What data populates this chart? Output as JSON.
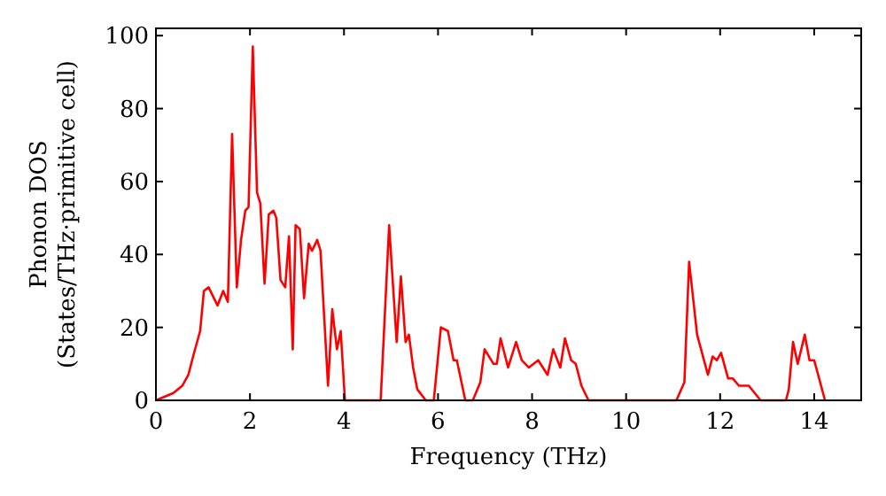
{
  "chart_data": {
    "type": "line",
    "xlabel": "Frequency (THz)",
    "ylabel": "Phonon DOS\n(States/THz·primitive cell)",
    "xlim": [
      0,
      15
    ],
    "xticks": [
      0,
      2,
      4,
      6,
      8,
      10,
      12,
      14
    ],
    "ylim": [
      0,
      102
    ],
    "yticks": [
      0,
      20,
      40,
      60,
      80,
      100
    ],
    "series": [
      {
        "color": "#ff0000",
        "x": [
          0,
          0.37,
          0.56,
          0.69,
          0.81,
          0.94,
          1.02,
          1.12,
          1.31,
          1.43,
          1.53,
          1.62,
          1.72,
          1.81,
          1.9,
          1.97,
          2.06,
          2.15,
          2.22,
          2.31,
          2.4,
          2.5,
          2.56,
          2.65,
          2.75,
          2.83,
          2.91,
          2.97,
          3.06,
          3.15,
          3.25,
          3.32,
          3.43,
          3.5,
          3.66,
          3.75,
          3.85,
          3.93,
          4.02,
          4.78,
          4.96,
          5.12,
          5.21,
          5.31,
          5.38,
          5.47,
          5.56,
          5.74,
          5.91,
          6.06,
          6.21,
          6.33,
          6.4,
          6.58,
          6.74,
          6.9,
          6.99,
          7.18,
          7.25,
          7.33,
          7.49,
          7.66,
          7.78,
          7.93,
          8.13,
          8.33,
          8.45,
          8.6,
          8.7,
          8.83,
          8.93,
          9.05,
          9.2,
          11.07,
          11.24,
          11.34,
          11.51,
          11.74,
          11.84,
          11.93,
          12.02,
          12.17,
          12.27,
          12.4,
          12.61,
          12.86,
          13.4,
          13.46,
          13.55,
          13.65,
          13.8,
          13.9,
          14,
          14.23
        ],
        "values": [
          0,
          2,
          4,
          7,
          13,
          19,
          30,
          31,
          26,
          30,
          27,
          73,
          31,
          44,
          52,
          53,
          97,
          57,
          54,
          32,
          51,
          52,
          50,
          33,
          31,
          45,
          14,
          48,
          47,
          28,
          43,
          41,
          44,
          41,
          4,
          25,
          14,
          19,
          0,
          0,
          48,
          16,
          34,
          16,
          18,
          9,
          3,
          0,
          0,
          20,
          19,
          11,
          11,
          0,
          0,
          5,
          14,
          10,
          10,
          17,
          9,
          16,
          11,
          9,
          11,
          7,
          14,
          9,
          17,
          11,
          10,
          4,
          0,
          0,
          5,
          38,
          18,
          7,
          12,
          11,
          13,
          6,
          6,
          4,
          4,
          0,
          0,
          3,
          16,
          10,
          18,
          11,
          11,
          0
        ]
      }
    ]
  }
}
